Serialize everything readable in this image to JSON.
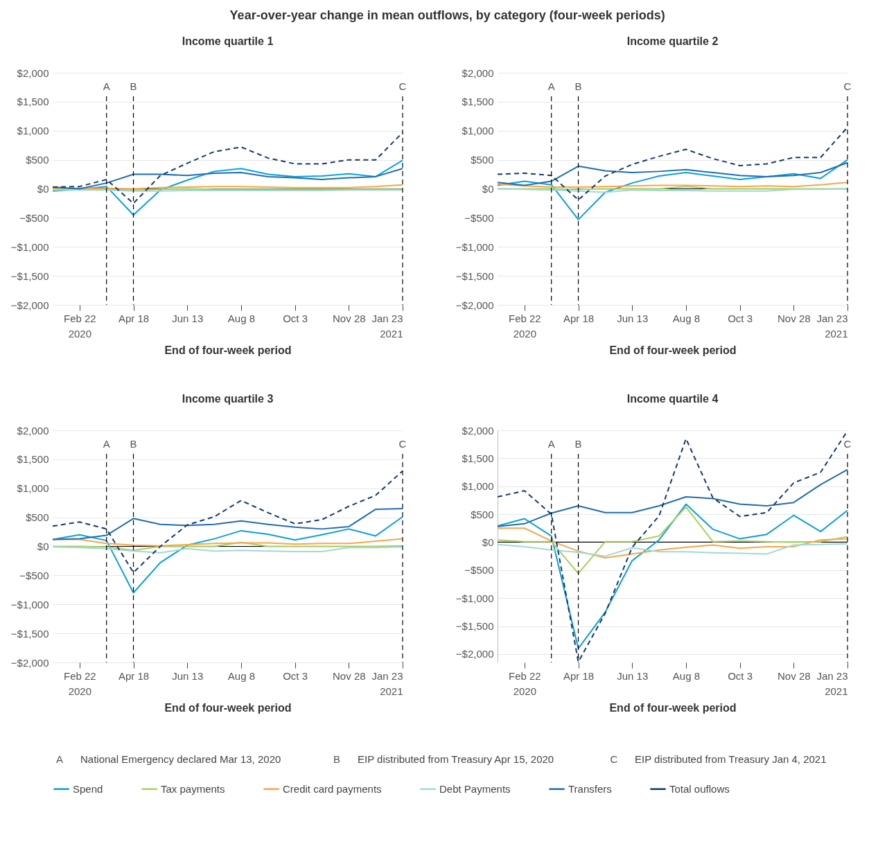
{
  "chart_data": [
    {
      "type": "line",
      "title": "Year-over-year change in mean outflows, by category (four-week periods)",
      "subtitle": "Income quartile 1",
      "xlabel": "End of four-week period",
      "x": [
        "2020-01-25",
        "2020-02-22",
        "2020-03-21",
        "2020-04-18",
        "2020-05-16",
        "2020-06-13",
        "2020-07-11",
        "2020-08-08",
        "2020-09-05",
        "2020-10-03",
        "2020-10-31",
        "2020-11-28",
        "2020-12-26",
        "2021-01-23"
      ],
      "xlim": [
        "2020-01-25",
        "2021-01-23"
      ],
      "xticks": [
        {
          "value": "2020-02-22",
          "label": "Feb 22\n2020"
        },
        {
          "value": "2020-04-18",
          "label": "Apr 18"
        },
        {
          "value": "2020-06-13",
          "label": "Jun 13"
        },
        {
          "value": "2020-08-08",
          "label": "Aug 8"
        },
        {
          "value": "2020-10-03",
          "label": "Oct 3"
        },
        {
          "value": "2020-11-28",
          "label": "Nov 28"
        },
        {
          "value": "2021-01-23",
          "label": "Jan 23\n2021"
        }
      ],
      "ylim": [
        -2000,
        2000
      ],
      "yticks": [
        {
          "value": -2000,
          "label": "−$2,000"
        },
        {
          "value": -1500,
          "label": "−$1,500"
        },
        {
          "value": -1000,
          "label": "−$1,000"
        },
        {
          "value": -500,
          "label": "−$500"
        },
        {
          "value": 0,
          "label": "$0"
        },
        {
          "value": 500,
          "label": "$500"
        },
        {
          "value": 1000,
          "label": "$1,000"
        },
        {
          "value": 1500,
          "label": "$1,500"
        },
        {
          "value": 2000,
          "label": "$2,000"
        }
      ],
      "grid": "y",
      "legend": "bottom",
      "annotations": [
        "National Emergency declared Mar 13, 2020",
        "EIP distributed from Treasury Apr 15, 2020",
        "EIP distributed from Treasury Jan 4, 2021"
      ],
      "ref_lines": [
        {
          "axis": "x",
          "value": "2020-03-21",
          "label": "A",
          "color": "#000000",
          "line_style": "dashed"
        },
        {
          "axis": "x",
          "value": "2020-04-18",
          "label": "B",
          "color": "#000000",
          "line_style": "dashed"
        },
        {
          "axis": "x",
          "value": "2021-01-23",
          "label": "C",
          "color": "#000000",
          "line_style": "dashed"
        },
        {
          "axis": "y",
          "value": 0,
          "color": "#000000"
        }
      ],
      "series": [
        {
          "name": "Spend",
          "color": "#0a9fdc",
          "values": [
            -40,
            -10,
            40,
            -450,
            -20,
            150,
            300,
            350,
            250,
            210,
            220,
            260,
            210,
            490
          ]
        },
        {
          "name": "Tax payments",
          "color": "#a6d05c",
          "values": [
            0,
            -10,
            -10,
            -20,
            -10,
            0,
            -10,
            -10,
            -10,
            -10,
            -10,
            -10,
            -10,
            -10
          ]
        },
        {
          "name": "Credit card payments",
          "color": "#f7a54b",
          "values": [
            10,
            10,
            10,
            0,
            20,
            30,
            40,
            40,
            30,
            20,
            20,
            20,
            40,
            70
          ]
        },
        {
          "name": "Debt Payments",
          "color": "#9fd9d6",
          "values": [
            -20,
            -20,
            -20,
            -40,
            -40,
            -30,
            -30,
            -30,
            -30,
            -30,
            -30,
            -20,
            -20,
            -20
          ]
        },
        {
          "name": "Transfers",
          "color": "#1f6db0",
          "values": [
            30,
            0,
            100,
            250,
            250,
            230,
            270,
            280,
            210,
            190,
            160,
            190,
            210,
            350
          ]
        },
        {
          "name": "Total ouflows",
          "color": "#14386b",
          "line_style": "dashed",
          "values": [
            30,
            40,
            160,
            -250,
            230,
            440,
            640,
            720,
            530,
            430,
            430,
            500,
            500,
            970
          ]
        }
      ]
    },
    {
      "type": "line",
      "subtitle": "Income quartile 2",
      "xlabel": "End of four-week period",
      "x": [
        "2020-01-25",
        "2020-02-22",
        "2020-03-21",
        "2020-04-18",
        "2020-05-16",
        "2020-06-13",
        "2020-07-11",
        "2020-08-08",
        "2020-09-05",
        "2020-10-03",
        "2020-10-31",
        "2020-11-28",
        "2020-12-26",
        "2021-01-23"
      ],
      "xlim": [
        "2020-01-25",
        "2021-01-23"
      ],
      "xticks": [
        {
          "value": "2020-02-22",
          "label": "Feb 22\n2020"
        },
        {
          "value": "2020-04-18",
          "label": "Apr 18"
        },
        {
          "value": "2020-06-13",
          "label": "Jun 13"
        },
        {
          "value": "2020-08-08",
          "label": "Aug 8"
        },
        {
          "value": "2020-10-03",
          "label": "Oct 3"
        },
        {
          "value": "2020-11-28",
          "label": "Nov 28"
        },
        {
          "value": "2021-01-23",
          "label": "Jan 23\n2021"
        }
      ],
      "ylim": [
        -2000,
        2000
      ],
      "yticks": [
        {
          "value": -2000,
          "label": "−$2,000"
        },
        {
          "value": -1500,
          "label": "−$1,500"
        },
        {
          "value": -1000,
          "label": "−$1,000"
        },
        {
          "value": -500,
          "label": "−$500"
        },
        {
          "value": 0,
          "label": "$0"
        },
        {
          "value": 500,
          "label": "$500"
        },
        {
          "value": 1000,
          "label": "$1,000"
        },
        {
          "value": 1500,
          "label": "$1,500"
        },
        {
          "value": 2000,
          "label": "$2,000"
        }
      ],
      "grid": "y",
      "ref_lines": [
        {
          "axis": "x",
          "value": "2020-03-21",
          "label": "A",
          "color": "#000000",
          "line_style": "dashed"
        },
        {
          "axis": "x",
          "value": "2020-04-18",
          "label": "B",
          "color": "#000000",
          "line_style": "dashed"
        },
        {
          "axis": "x",
          "value": "2021-01-23",
          "label": "C",
          "color": "#000000",
          "line_style": "dashed"
        },
        {
          "axis": "y",
          "value": 0,
          "color": "#000000"
        }
      ],
      "series": [
        {
          "name": "Spend",
          "color": "#0a9fdc",
          "values": [
            60,
            130,
            70,
            -530,
            -60,
            100,
            220,
            280,
            220,
            160,
            210,
            260,
            180,
            500
          ]
        },
        {
          "name": "Tax payments",
          "color": "#a6d05c",
          "values": [
            0,
            0,
            0,
            -10,
            0,
            0,
            0,
            40,
            0,
            0,
            0,
            0,
            0,
            0
          ]
        },
        {
          "name": "Credit card payments",
          "color": "#f7a54b",
          "values": [
            80,
            50,
            30,
            30,
            40,
            50,
            60,
            60,
            50,
            40,
            50,
            40,
            70,
            110
          ]
        },
        {
          "name": "Debt Payments",
          "color": "#9fd9d6",
          "values": [
            0,
            -10,
            -20,
            -40,
            -60,
            -20,
            -30,
            -30,
            -40,
            -40,
            -40,
            -10,
            -10,
            0
          ]
        },
        {
          "name": "Transfers",
          "color": "#1f6db0",
          "values": [
            110,
            60,
            130,
            390,
            310,
            280,
            300,
            330,
            280,
            230,
            210,
            230,
            280,
            450
          ]
        },
        {
          "name": "Total ouflows",
          "color": "#14386b",
          "line_style": "dashed",
          "values": [
            250,
            270,
            230,
            -190,
            220,
            420,
            560,
            680,
            520,
            400,
            430,
            540,
            540,
            1060
          ]
        }
      ]
    },
    {
      "type": "line",
      "subtitle": "Income quartile 3",
      "xlabel": "End of four-week period",
      "x": [
        "2020-01-25",
        "2020-02-22",
        "2020-03-21",
        "2020-04-18",
        "2020-05-16",
        "2020-06-13",
        "2020-07-11",
        "2020-08-08",
        "2020-09-05",
        "2020-10-03",
        "2020-10-31",
        "2020-11-28",
        "2020-12-26",
        "2021-01-23"
      ],
      "xlim": [
        "2020-01-25",
        "2021-01-23"
      ],
      "xticks": [
        {
          "value": "2020-02-22",
          "label": "Feb 22\n2020"
        },
        {
          "value": "2020-04-18",
          "label": "Apr 18"
        },
        {
          "value": "2020-06-13",
          "label": "Jun 13"
        },
        {
          "value": "2020-08-08",
          "label": "Aug 8"
        },
        {
          "value": "2020-10-03",
          "label": "Oct 3"
        },
        {
          "value": "2020-11-28",
          "label": "Nov 28"
        },
        {
          "value": "2021-01-23",
          "label": "Jan 23\n2021"
        }
      ],
      "ylim": [
        -2000,
        2000
      ],
      "yticks": [
        {
          "value": -2000,
          "label": "−$2,000"
        },
        {
          "value": -1500,
          "label": "−$1,500"
        },
        {
          "value": -1000,
          "label": "−$1,000"
        },
        {
          "value": -500,
          "label": "−$500"
        },
        {
          "value": 0,
          "label": "$0"
        },
        {
          "value": 500,
          "label": "$500"
        },
        {
          "value": 1000,
          "label": "$1,000"
        },
        {
          "value": 1500,
          "label": "$1,500"
        },
        {
          "value": 2000,
          "label": "$2,000"
        }
      ],
      "grid": "y",
      "ref_lines": [
        {
          "axis": "x",
          "value": "2020-03-21",
          "label": "A",
          "color": "#000000",
          "line_style": "dashed"
        },
        {
          "axis": "x",
          "value": "2020-04-18",
          "label": "B",
          "color": "#000000",
          "line_style": "dashed"
        },
        {
          "axis": "x",
          "value": "2021-01-23",
          "label": "C",
          "color": "#000000",
          "line_style": "dashed"
        },
        {
          "axis": "y",
          "value": 0,
          "color": "#000000"
        }
      ],
      "series": [
        {
          "name": "Spend",
          "color": "#0a9fdc",
          "values": [
            120,
            200,
            100,
            -800,
            -280,
            20,
            130,
            270,
            210,
            110,
            200,
            300,
            180,
            510
          ]
        },
        {
          "name": "Tax payments",
          "color": "#a6d05c",
          "values": [
            0,
            0,
            -10,
            -70,
            0,
            0,
            0,
            70,
            0,
            0,
            0,
            0,
            0,
            10
          ]
        },
        {
          "name": "Credit card payments",
          "color": "#f7a54b",
          "values": [
            120,
            120,
            50,
            20,
            10,
            30,
            50,
            60,
            60,
            40,
            50,
            50,
            90,
            130
          ]
        },
        {
          "name": "Debt Payments",
          "color": "#9fd9d6",
          "values": [
            -10,
            -20,
            -40,
            -80,
            -110,
            -40,
            -80,
            -70,
            -80,
            -90,
            -90,
            -20,
            -20,
            -10
          ]
        },
        {
          "name": "Transfers",
          "color": "#1f6db0",
          "values": [
            120,
            130,
            190,
            480,
            380,
            360,
            380,
            440,
            380,
            330,
            300,
            340,
            640,
            650
          ]
        },
        {
          "name": "Total ouflows",
          "color": "#14386b",
          "line_style": "dashed",
          "values": [
            350,
            420,
            300,
            -450,
            0,
            370,
            510,
            790,
            580,
            390,
            460,
            690,
            880,
            1300
          ]
        }
      ]
    },
    {
      "type": "line",
      "subtitle": "Income quartile 4",
      "xlabel": "End of four-week period",
      "x": [
        "2020-01-25",
        "2020-02-22",
        "2020-03-21",
        "2020-04-18",
        "2020-05-16",
        "2020-06-13",
        "2020-07-11",
        "2020-08-08",
        "2020-09-05",
        "2020-10-03",
        "2020-10-31",
        "2020-11-28",
        "2020-12-26",
        "2021-01-23"
      ],
      "xlim": [
        "2020-01-25",
        "2021-01-23"
      ],
      "xticks": [
        {
          "value": "2020-02-22",
          "label": "Feb 22\n2020"
        },
        {
          "value": "2020-04-18",
          "label": "Apr 18"
        },
        {
          "value": "2020-06-13",
          "label": "Jun 13"
        },
        {
          "value": "2020-08-08",
          "label": "Aug 8"
        },
        {
          "value": "2020-10-03",
          "label": "Oct 3"
        },
        {
          "value": "2020-11-28",
          "label": "Nov 28"
        },
        {
          "value": "2021-01-23",
          "label": "Jan 23\n2021"
        }
      ],
      "ylim": [
        -2150,
        2000
      ],
      "yticks": [
        {
          "value": -2000,
          "label": "−$2,000"
        },
        {
          "value": -1500,
          "label": "−$1,500"
        },
        {
          "value": -1000,
          "label": "−$1,000"
        },
        {
          "value": -500,
          "label": "−$500"
        },
        {
          "value": 0,
          "label": "$0"
        },
        {
          "value": 500,
          "label": "$500"
        },
        {
          "value": 1000,
          "label": "$1,000"
        },
        {
          "value": 1500,
          "label": "$1,500"
        },
        {
          "value": 2000,
          "label": "$2,000"
        }
      ],
      "grid": "y",
      "ref_lines": [
        {
          "axis": "x",
          "value": "2020-03-21",
          "label": "A",
          "color": "#000000",
          "line_style": "dashed"
        },
        {
          "axis": "x",
          "value": "2020-04-18",
          "label": "B",
          "color": "#000000",
          "line_style": "dashed"
        },
        {
          "axis": "x",
          "value": "2021-01-23",
          "label": "C",
          "color": "#000000",
          "line_style": "dashed"
        },
        {
          "axis": "y",
          "value": 0,
          "color": "#000000"
        }
      ],
      "series": [
        {
          "name": "Spend",
          "color": "#0a9fdc",
          "values": [
            290,
            420,
            110,
            -1900,
            -1250,
            -330,
            40,
            680,
            230,
            60,
            140,
            480,
            190,
            570
          ]
        },
        {
          "name": "Tax payments",
          "color": "#a6d05c",
          "values": [
            40,
            10,
            10,
            -560,
            10,
            10,
            110,
            630,
            10,
            20,
            10,
            0,
            10,
            100
          ]
        },
        {
          "name": "Credit card payments",
          "color": "#f7a54b",
          "values": [
            250,
            250,
            20,
            -160,
            -280,
            -210,
            -140,
            -90,
            -50,
            -110,
            -80,
            -80,
            40,
            60
          ]
        },
        {
          "name": "Debt Payments",
          "color": "#9fd9d6",
          "values": [
            -40,
            -80,
            -140,
            -180,
            -250,
            -100,
            -170,
            -170,
            -190,
            -200,
            -210,
            -50,
            -40,
            -30
          ]
        },
        {
          "name": "Transfers",
          "color": "#1f6db0",
          "values": [
            280,
            330,
            520,
            650,
            530,
            530,
            650,
            810,
            780,
            680,
            650,
            710,
            1030,
            1300
          ]
        },
        {
          "name": "Total ouflows",
          "color": "#14386b",
          "line_style": "dashed",
          "values": [
            810,
            920,
            500,
            -2140,
            -1270,
            -90,
            470,
            1850,
            790,
            460,
            530,
            1060,
            1250,
            1990
          ]
        }
      ]
    }
  ]
}
